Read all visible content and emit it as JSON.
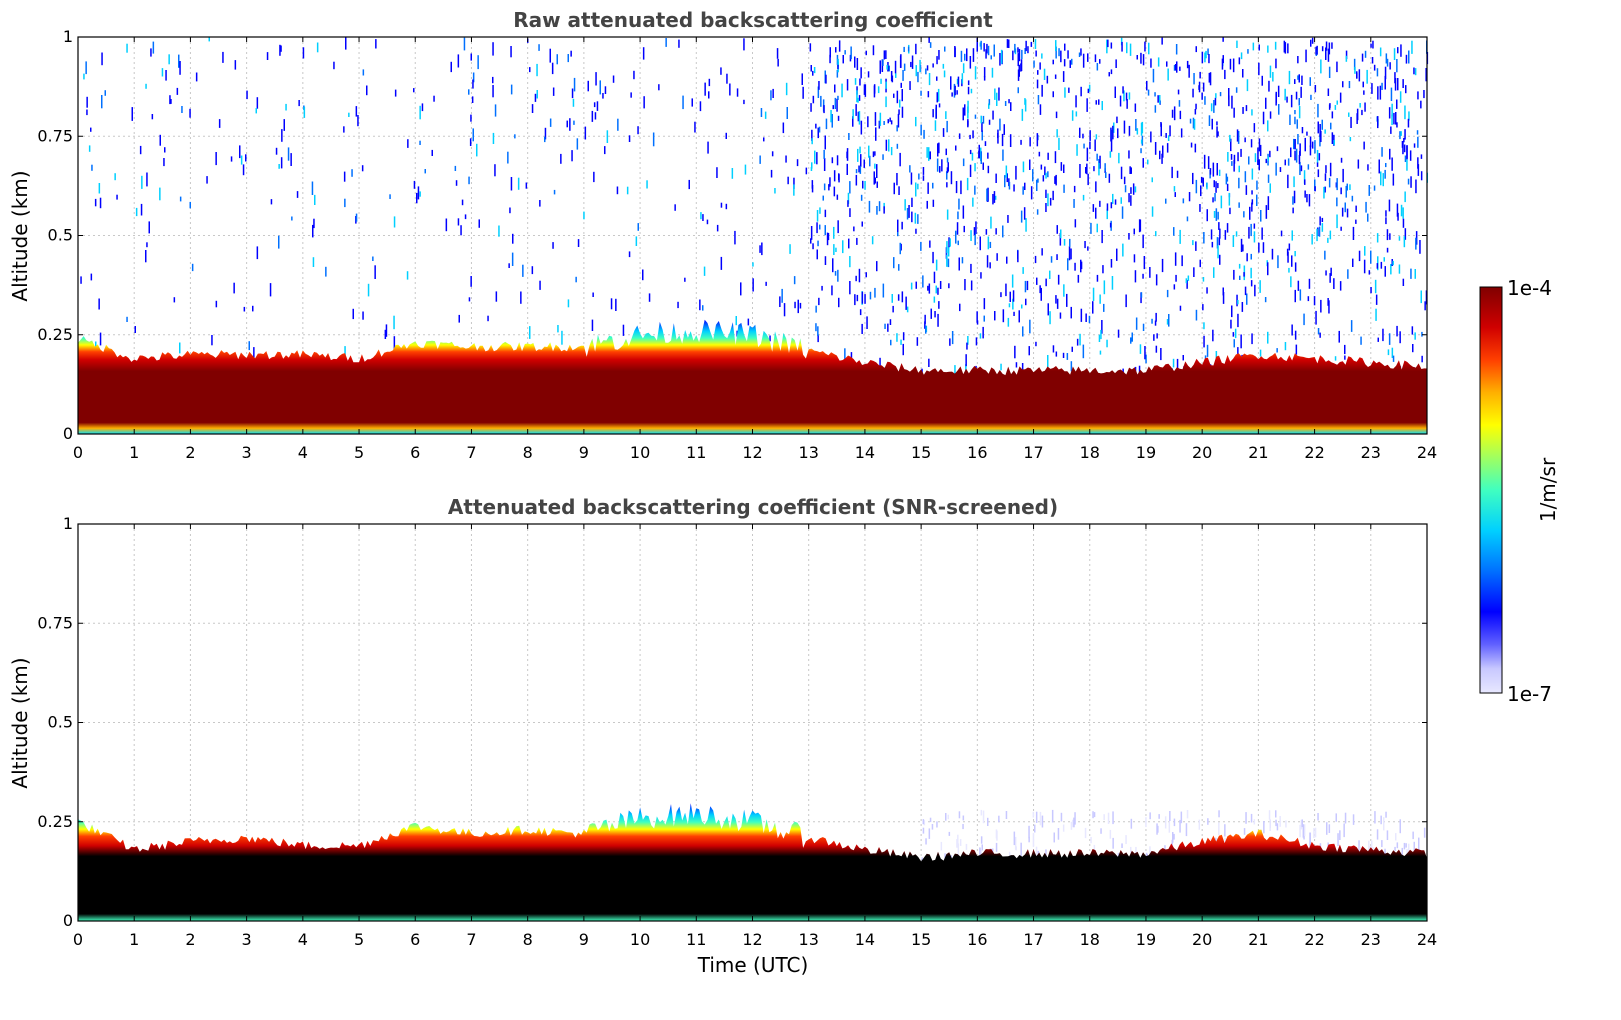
{
  "colors": {
    "background": "#ffffff",
    "grid": "#c8c8c8",
    "saturation_black": "#000000",
    "colormap": [
      "#e8e8ff",
      "#c8c8ff",
      "#0000ff",
      "#0070ff",
      "#00d0ff",
      "#40ffc0",
      "#a0ff60",
      "#ffff00",
      "#ffb000",
      "#ff4000",
      "#d00000",
      "#800000"
    ]
  },
  "chart_data": [
    {
      "type": "heatmap",
      "title": "Raw attenuated backscattering coefficient",
      "xlabel": "",
      "ylabel": "Altitude (km)",
      "xlim": [
        0,
        24
      ],
      "ylim": [
        0,
        1
      ],
      "xticks": [
        "0",
        "1",
        "2",
        "3",
        "4",
        "5",
        "6",
        "7",
        "8",
        "9",
        "10",
        "11",
        "12",
        "13",
        "14",
        "15",
        "16",
        "17",
        "18",
        "19",
        "20",
        "21",
        "22",
        "23",
        "24"
      ],
      "yticks": [
        "0",
        "0.25",
        "0.5",
        "0.75",
        "1"
      ],
      "grid": true,
      "boundary_layer_top_km": {
        "time_utc": [
          0,
          1,
          2,
          3,
          4,
          5,
          6,
          7,
          8,
          9,
          10,
          11,
          12,
          13,
          14,
          15,
          16,
          17,
          18,
          19,
          20,
          21,
          22,
          23,
          24
        ],
        "altitude_km": [
          0.24,
          0.19,
          0.2,
          0.2,
          0.2,
          0.19,
          0.23,
          0.22,
          0.22,
          0.22,
          0.25,
          0.26,
          0.25,
          0.21,
          0.18,
          0.16,
          0.16,
          0.16,
          0.16,
          0.16,
          0.18,
          0.2,
          0.19,
          0.18,
          0.17
        ]
      },
      "noise_above_layer": "sparse speckle before 13 UTC; dense speckle up to 1 km after 13 UTC"
    },
    {
      "type": "heatmap",
      "title": "Attenuated backscattering coefficient (SNR-screened)",
      "xlabel": "Time (UTC)",
      "ylabel": "Altitude (km)",
      "xlim": [
        0,
        24
      ],
      "ylim": [
        0,
        1
      ],
      "xticks": [
        "0",
        "1",
        "2",
        "3",
        "4",
        "5",
        "6",
        "7",
        "8",
        "9",
        "10",
        "11",
        "12",
        "13",
        "14",
        "15",
        "16",
        "17",
        "18",
        "19",
        "20",
        "21",
        "22",
        "23",
        "24"
      ],
      "yticks": [
        "0",
        "0.25",
        "0.5",
        "0.75",
        "1"
      ],
      "grid": true,
      "boundary_layer_top_km": {
        "time_utc": [
          0,
          1,
          2,
          3,
          4,
          5,
          6,
          7,
          8,
          9,
          10,
          11,
          12,
          13,
          14,
          15,
          16,
          17,
          18,
          19,
          20,
          21,
          22,
          23,
          24
        ],
        "altitude_km": [
          0.25,
          0.18,
          0.2,
          0.21,
          0.19,
          0.19,
          0.24,
          0.22,
          0.23,
          0.22,
          0.26,
          0.27,
          0.25,
          0.21,
          0.18,
          0.16,
          0.17,
          0.17,
          0.17,
          0.17,
          0.2,
          0.22,
          0.19,
          0.18,
          0.17
        ]
      },
      "saturated_values_shown_as": "black"
    }
  ],
  "colorbar": {
    "max_label": "1e-4",
    "min_label": "1e-7",
    "unit_label": "1/m/sr"
  }
}
